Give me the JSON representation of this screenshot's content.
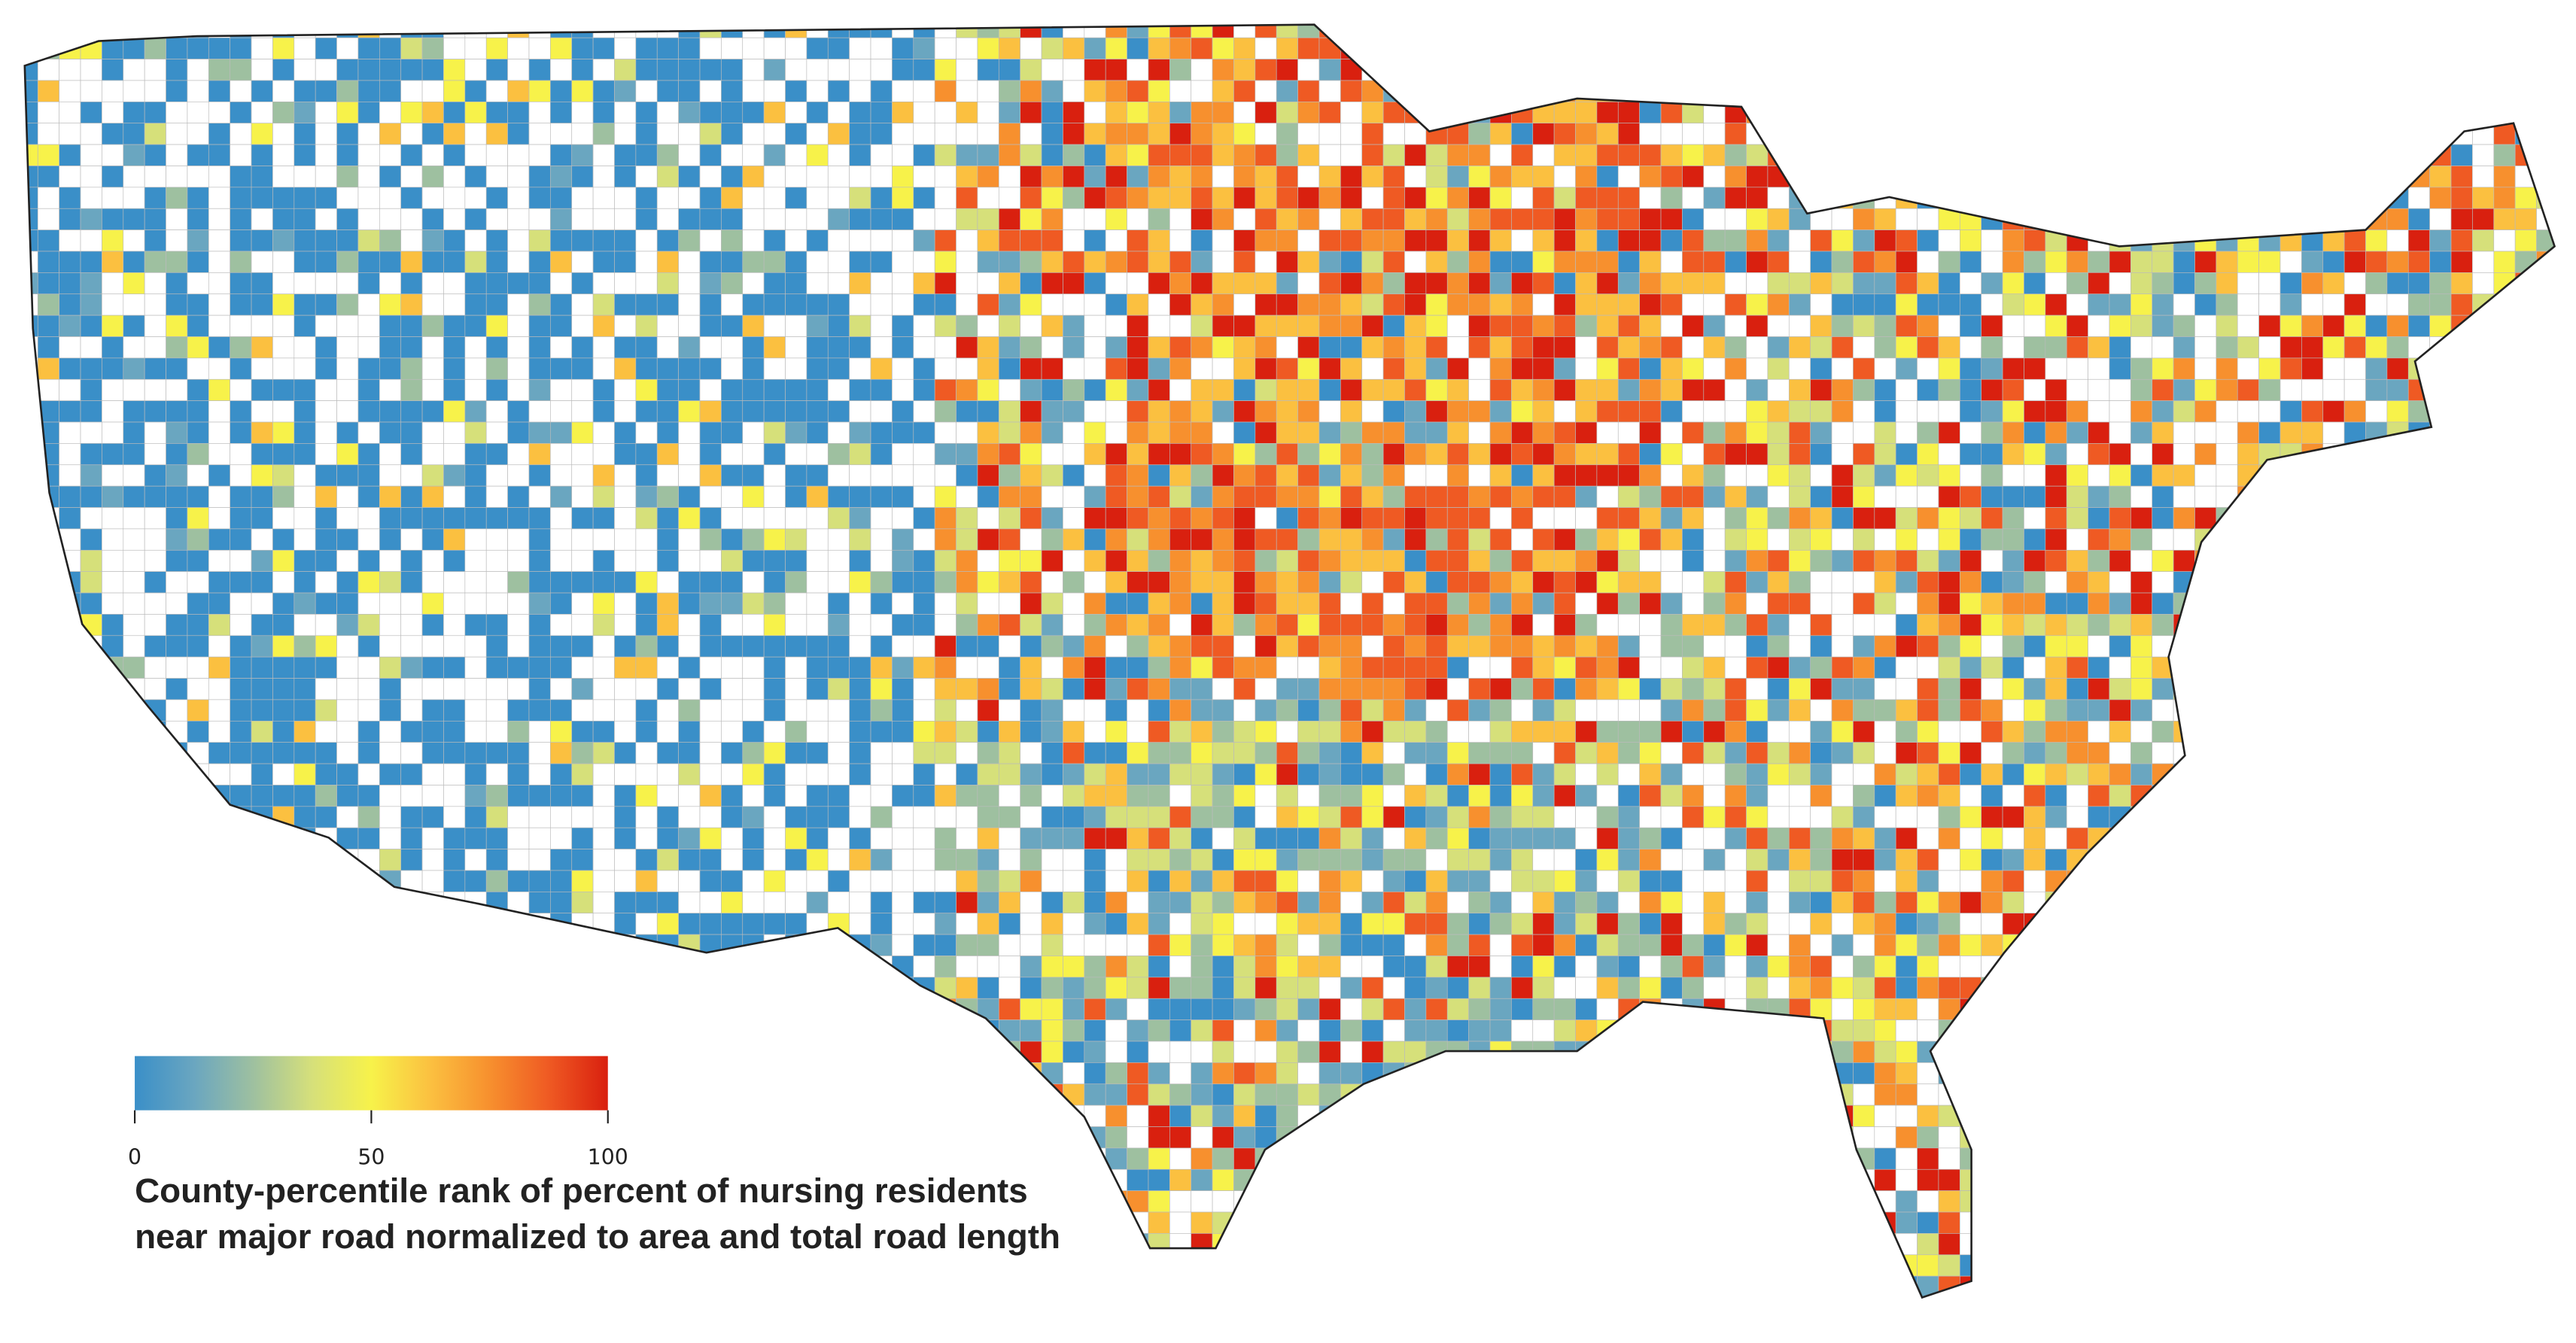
{
  "legend": {
    "colors": [
      "#3a8fc8",
      "#6aa6c0",
      "#9ec0a0",
      "#d6e07a",
      "#f7f24a",
      "#fbc040",
      "#f7902e",
      "#ef5a23",
      "#d9200f"
    ],
    "ticks": [
      0,
      50,
      100
    ],
    "title_lines": [
      "County-percentile rank of percent of nursing residents",
      "near major road normalized to area and total road length"
    ]
  }
}
